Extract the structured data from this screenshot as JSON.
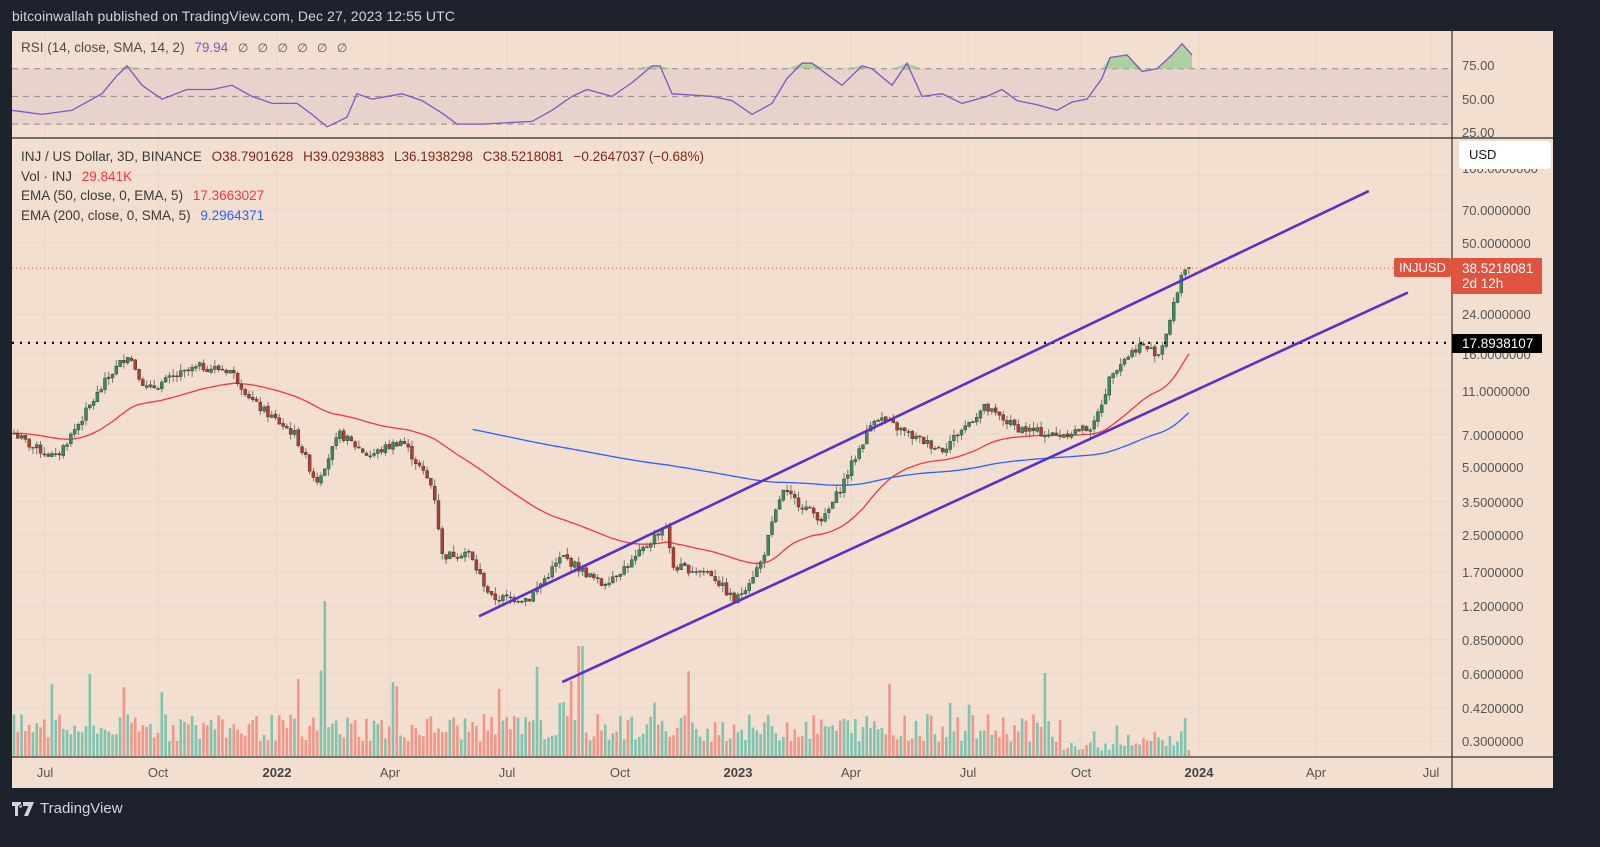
{
  "publish_line": "bitcoinwallah published on TradingView.com, Dec 27, 2023 12:55 UTC",
  "rsi_pane": {
    "title": "RSI (14, close, SMA, 14, 2)",
    "value": "79.94",
    "na_markers": "∅ ∅ ∅ ∅ ∅ ∅",
    "axis_labels": [
      "75.00",
      "50.00",
      "25.00"
    ],
    "line_color": "#7e57c2",
    "band_fill": "#e3cfcb"
  },
  "main_legend": {
    "symbol": "INJ / US Dollar, 3D, BINANCE",
    "open": "O38.7901628",
    "high": "H39.0293883",
    "low": "L36.1938298",
    "close": "C38.5218081",
    "change": "−0.2647037 (−0.68%)",
    "vol_label": "Vol · INJ",
    "vol_value": "29.841K",
    "ema50_label": "EMA (50, close, 0, EMA, 5)",
    "ema50_value": "17.3663027",
    "ema200_label": "EMA (200, close, 0, SMA, 5)",
    "ema200_value": "9.2964371"
  },
  "price_axis": {
    "currency_button": "USD",
    "labels": [
      "100.0000000",
      "70.0000000",
      "50.0000000",
      "24.0000000",
      "16.0000000",
      "11.0000000",
      "7.0000000",
      "5.0000000",
      "3.5000000",
      "2.5000000",
      "1.7000000",
      "1.2000000",
      "0.8500000",
      "0.6000000",
      "0.4200000",
      "0.3000000"
    ],
    "current_symbol": "INJUSD",
    "current_price": "38.5218081",
    "countdown": "2d 12h",
    "horizontal_level": "17.8938107"
  },
  "time_axis": {
    "labels": [
      {
        "text": "Jul",
        "year": false
      },
      {
        "text": "Oct",
        "year": false
      },
      {
        "text": "2022",
        "year": true
      },
      {
        "text": "Apr",
        "year": false
      },
      {
        "text": "Jul",
        "year": false
      },
      {
        "text": "Oct",
        "year": false
      },
      {
        "text": "2023",
        "year": true
      },
      {
        "text": "Apr",
        "year": false
      },
      {
        "text": "Jul",
        "year": false
      },
      {
        "text": "Oct",
        "year": false
      },
      {
        "text": "2024",
        "year": true
      },
      {
        "text": "Apr",
        "year": false
      },
      {
        "text": "Jul",
        "year": false
      }
    ]
  },
  "colors": {
    "background": "#f2dfcf",
    "outer": "#1e222d",
    "up_candle": "#3e8a5e",
    "down_candle": "#b83a2c",
    "vol_up": "#7fc4b0",
    "vol_down": "#f0968a",
    "ema50": "#f23645",
    "ema200": "#2962ff",
    "channel": "#5e2fc7",
    "price_tag": "#e0533f"
  },
  "branding": {
    "logo_text": "TradingView"
  },
  "chart_data": {
    "type": "candlestick",
    "title": "INJ / US Dollar, 3D, BINANCE",
    "scale": "log",
    "ylim": [
      0.28,
      110
    ],
    "x_range": [
      "2021-06",
      "2024-08"
    ],
    "yticks": [
      100,
      70,
      50,
      24,
      16,
      11,
      7,
      5,
      3.5,
      2.5,
      1.7,
      1.2,
      0.85,
      0.6,
      0.42,
      0.3
    ],
    "xticks": [
      "Jul",
      "Oct",
      "2022",
      "Apr",
      "Jul",
      "Oct",
      "2023",
      "Apr",
      "Jul",
      "Oct",
      "2024",
      "Apr",
      "Jul"
    ],
    "last_ohlc": {
      "open": 38.7901628,
      "high": 39.0293883,
      "low": 36.1938298,
      "close": 38.5218081,
      "change": -0.2647037,
      "change_pct": -0.68
    },
    "price_path": [
      {
        "date": "2021-06-01",
        "close": 7.5
      },
      {
        "date": "2021-06-20",
        "close": 6.2
      },
      {
        "date": "2021-07-10",
        "close": 5.5
      },
      {
        "date": "2021-08-01",
        "close": 8.5
      },
      {
        "date": "2021-08-20",
        "close": 12.5
      },
      {
        "date": "2021-09-05",
        "close": 16.0
      },
      {
        "date": "2021-09-20",
        "close": 11.0
      },
      {
        "date": "2021-10-10",
        "close": 12.5
      },
      {
        "date": "2021-11-01",
        "close": 14.0
      },
      {
        "date": "2021-11-25",
        "close": 13.5
      },
      {
        "date": "2021-12-15",
        "close": 9.5
      },
      {
        "date": "2022-01-15",
        "close": 7.0
      },
      {
        "date": "2022-02-01",
        "close": 4.3
      },
      {
        "date": "2022-02-20",
        "close": 7.0
      },
      {
        "date": "2022-03-15",
        "close": 5.6
      },
      {
        "date": "2022-04-10",
        "close": 6.6
      },
      {
        "date": "2022-05-05",
        "close": 4.0
      },
      {
        "date": "2022-05-12",
        "close": 2.0
      },
      {
        "date": "2022-06-01",
        "close": 2.1
      },
      {
        "date": "2022-06-20",
        "close": 1.3
      },
      {
        "date": "2022-07-20",
        "close": 1.3
      },
      {
        "date": "2022-08-15",
        "close": 2.0
      },
      {
        "date": "2022-09-15",
        "close": 1.5
      },
      {
        "date": "2022-10-10",
        "close": 1.9
      },
      {
        "date": "2022-11-05",
        "close": 2.8
      },
      {
        "date": "2022-11-10",
        "close": 1.8
      },
      {
        "date": "2022-12-10",
        "close": 1.7
      },
      {
        "date": "2022-12-30",
        "close": 1.25
      },
      {
        "date": "2023-01-20",
        "close": 1.9
      },
      {
        "date": "2023-02-05",
        "close": 3.9
      },
      {
        "date": "2023-03-10",
        "close": 2.9
      },
      {
        "date": "2023-03-25",
        "close": 4.2
      },
      {
        "date": "2023-04-20",
        "close": 8.5
      },
      {
        "date": "2023-05-20",
        "close": 6.8
      },
      {
        "date": "2023-06-12",
        "close": 6.0
      },
      {
        "date": "2023-07-15",
        "close": 9.2
      },
      {
        "date": "2023-08-10",
        "close": 7.5
      },
      {
        "date": "2023-09-10",
        "close": 6.9
      },
      {
        "date": "2023-10-10",
        "close": 7.6
      },
      {
        "date": "2023-10-25",
        "close": 13.5
      },
      {
        "date": "2023-11-15",
        "close": 17.5
      },
      {
        "date": "2023-12-01",
        "close": 16.0
      },
      {
        "date": "2023-12-10",
        "close": 23.0
      },
      {
        "date": "2023-12-20",
        "close": 38.8
      },
      {
        "date": "2023-12-27",
        "close": 38.52
      }
    ],
    "series": [
      {
        "name": "EMA 50",
        "color": "#f23645",
        "last": 17.3663027
      },
      {
        "name": "EMA 200",
        "color": "#2962ff",
        "last": 9.2964371
      },
      {
        "name": "Volume",
        "last": "29.841K"
      }
    ],
    "annotations": [
      {
        "type": "horizontal_line",
        "value": 17.8938107,
        "style": "dotted",
        "color": "#000000"
      },
      {
        "type": "trend_channel_upper",
        "from": {
          "date": "2022-06-10",
          "price": 1.08
        },
        "to": {
          "date": "2024-05-15",
          "price": 85
        },
        "color": "#5e2fc7"
      },
      {
        "type": "trend_channel_lower",
        "from": {
          "date": "2022-08-15",
          "price": 0.55
        },
        "to": {
          "date": "2024-06-15",
          "price": 30
        },
        "color": "#5e2fc7"
      }
    ],
    "rsi": {
      "period": 14,
      "last": 79.94,
      "upper": 70,
      "middle": 50,
      "lower": 30,
      "ylim": [
        20,
        90
      ],
      "peaks_over_70": [
        "2023-02",
        "2023-04",
        "2023-11",
        "2023-12"
      ]
    }
  }
}
